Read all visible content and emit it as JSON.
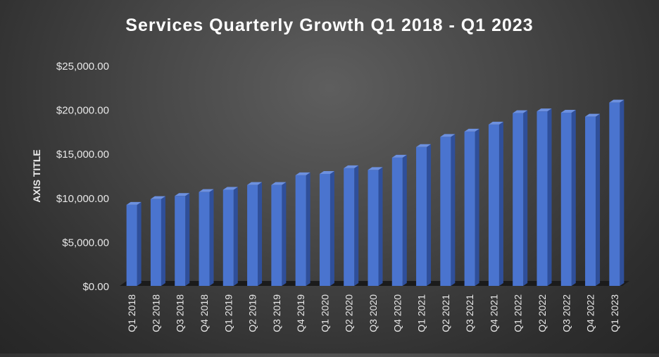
{
  "chart_data": {
    "type": "bar",
    "title": "Services Quarterly Growth Q1 2018 - Q1 2023",
    "xlabel": "",
    "ylabel": "AXIS TITLE",
    "ylim": [
      0,
      25000
    ],
    "yticks": [
      0,
      5000,
      10000,
      15000,
      20000,
      25000
    ],
    "ytick_labels": [
      "$0.00",
      "$5,000.00",
      "$10,000.00",
      "$15,000.00",
      "$20,000.00",
      "$25,000.00"
    ],
    "categories": [
      "Q1 2018",
      "Q2 2018",
      "Q3 2018",
      "Q4 2018",
      "Q1 2019",
      "Q2 2019",
      "Q3 2019",
      "Q4 2019",
      "Q1 2020",
      "Q2 2020",
      "Q3 2020",
      "Q4 2020",
      "Q1 2021",
      "Q2 2021",
      "Q3 2021",
      "Q4 2021",
      "Q1 2022",
      "Q2 2022",
      "Q3 2022",
      "Q4 2022",
      "Q1 2023"
    ],
    "values": [
      9200,
      9850,
      10200,
      10650,
      10900,
      11450,
      11450,
      12550,
      12700,
      13350,
      13150,
      14550,
      15750,
      16900,
      17500,
      18300,
      19600,
      19800,
      19650,
      19200,
      20800
    ],
    "grid": false,
    "legend": "none",
    "colors": {
      "bar_front": "#4a74cf",
      "bar_side": "#2f4f9a",
      "bar_top": "#6d91e0",
      "floor": "#1b1b1b",
      "text": "#e8e8e8",
      "title": "#ffffff"
    }
  }
}
